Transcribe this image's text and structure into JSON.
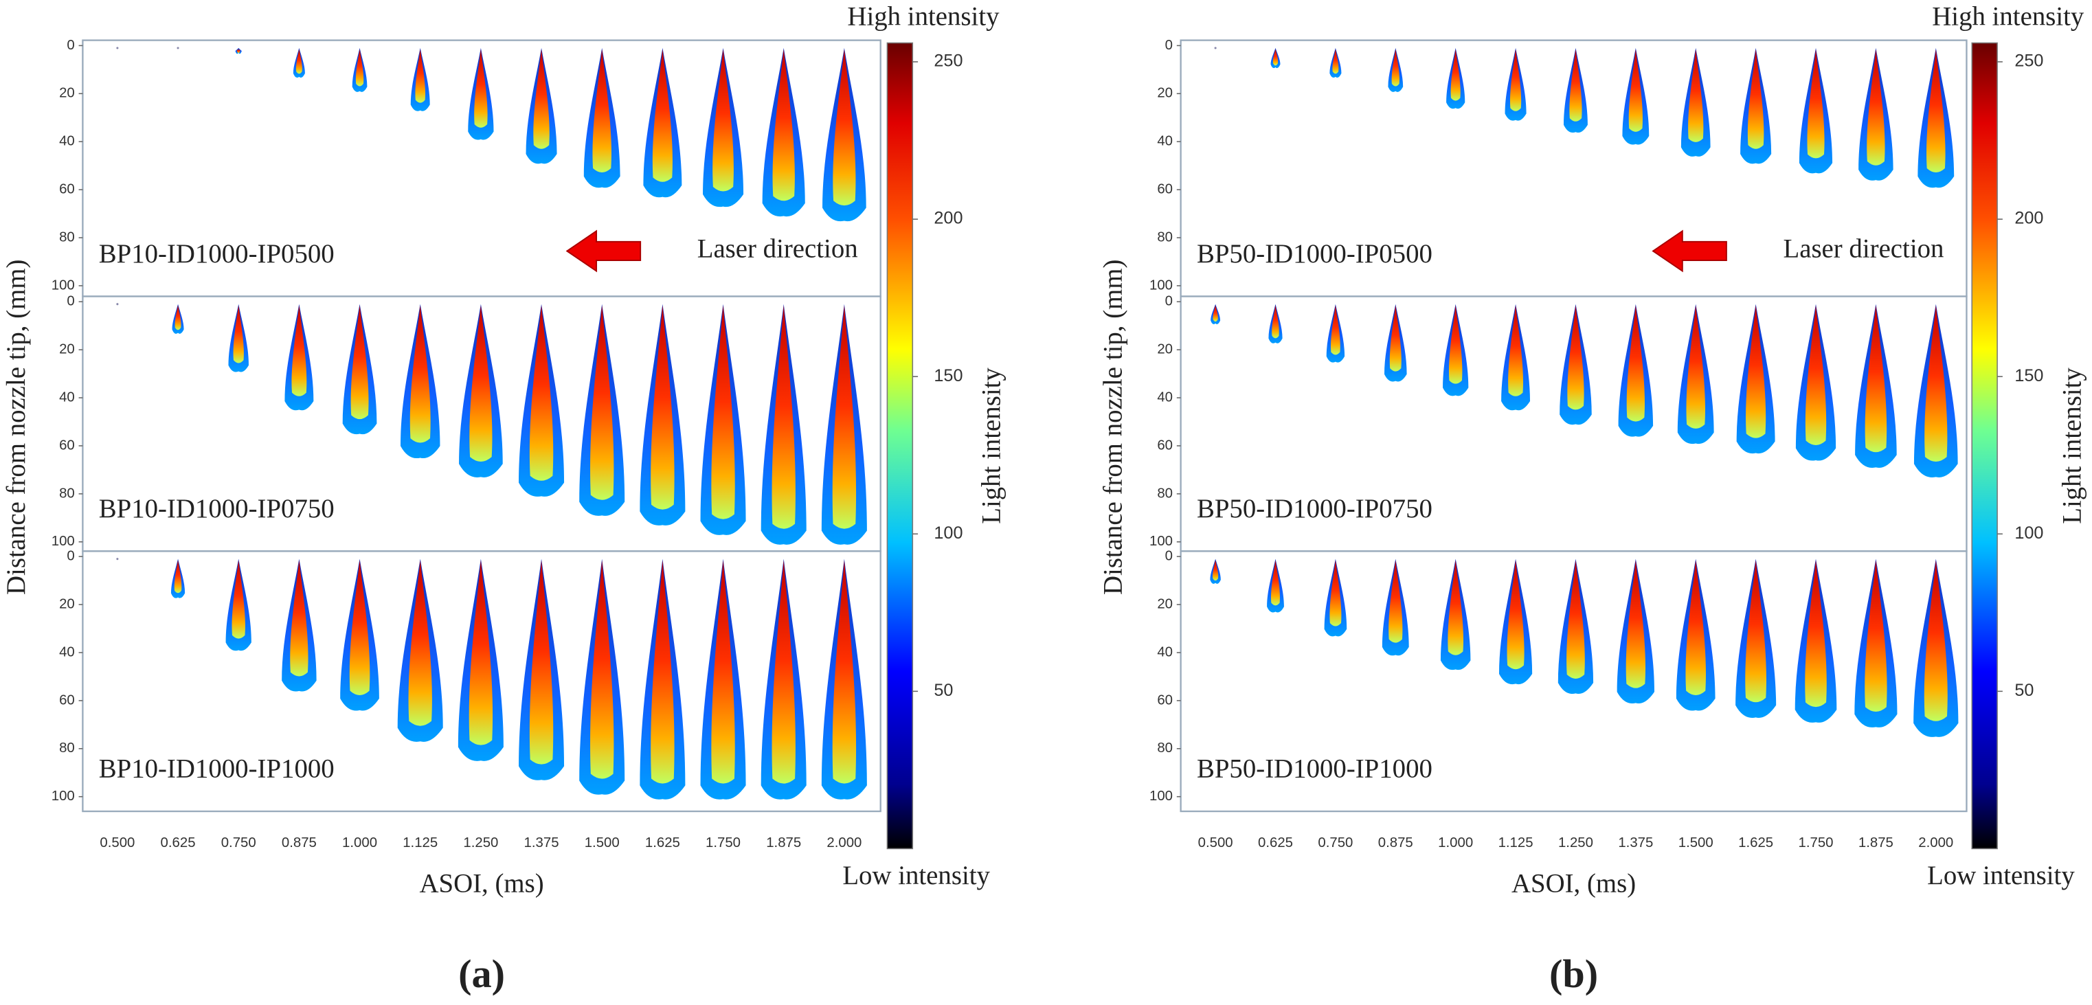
{
  "panels": [
    {
      "tag": "(a)",
      "high_label": "High intensity",
      "low_label": "Low intensity",
      "colorbar_label": "Light intensity",
      "colorbar_ticks": [
        50,
        100,
        150,
        200,
        250
      ],
      "y_label": "Distance from nozzle tip, (mm)",
      "x_label": "ASOI, (ms)",
      "x_ticks": [
        "0.500",
        "0.625",
        "0.750",
        "0.875",
        "1.000",
        "1.125",
        "1.250",
        "1.375",
        "1.500",
        "1.625",
        "1.750",
        "1.875",
        "2.000"
      ],
      "y_ticks": [
        0,
        20,
        40,
        60,
        80,
        100
      ],
      "annotation": "Laser direction",
      "subpanels": [
        "BP10-ID1000-IP0500",
        "BP10-ID1000-IP0750",
        "BP10-ID1000-IP1000"
      ]
    },
    {
      "tag": "(b)",
      "high_label": "High intensity",
      "low_label": "Low intensity",
      "colorbar_label": "Light intensity",
      "colorbar_ticks": [
        50,
        100,
        150,
        200,
        250
      ],
      "y_label": "Distance from nozzle tip, (mm)",
      "x_label": "ASOI, (ms)",
      "x_ticks": [
        "0.500",
        "0.625",
        "0.750",
        "0.875",
        "1.000",
        "1.125",
        "1.250",
        "1.375",
        "1.500",
        "1.625",
        "1.750",
        "1.875",
        "2.000"
      ],
      "y_ticks": [
        0,
        20,
        40,
        60,
        80,
        100
      ],
      "annotation": "Laser direction",
      "subpanels": [
        "BP50-ID1000-IP0500",
        "BP50-ID1000-IP0750",
        "BP50-ID1000-IP1000"
      ]
    }
  ]
}
